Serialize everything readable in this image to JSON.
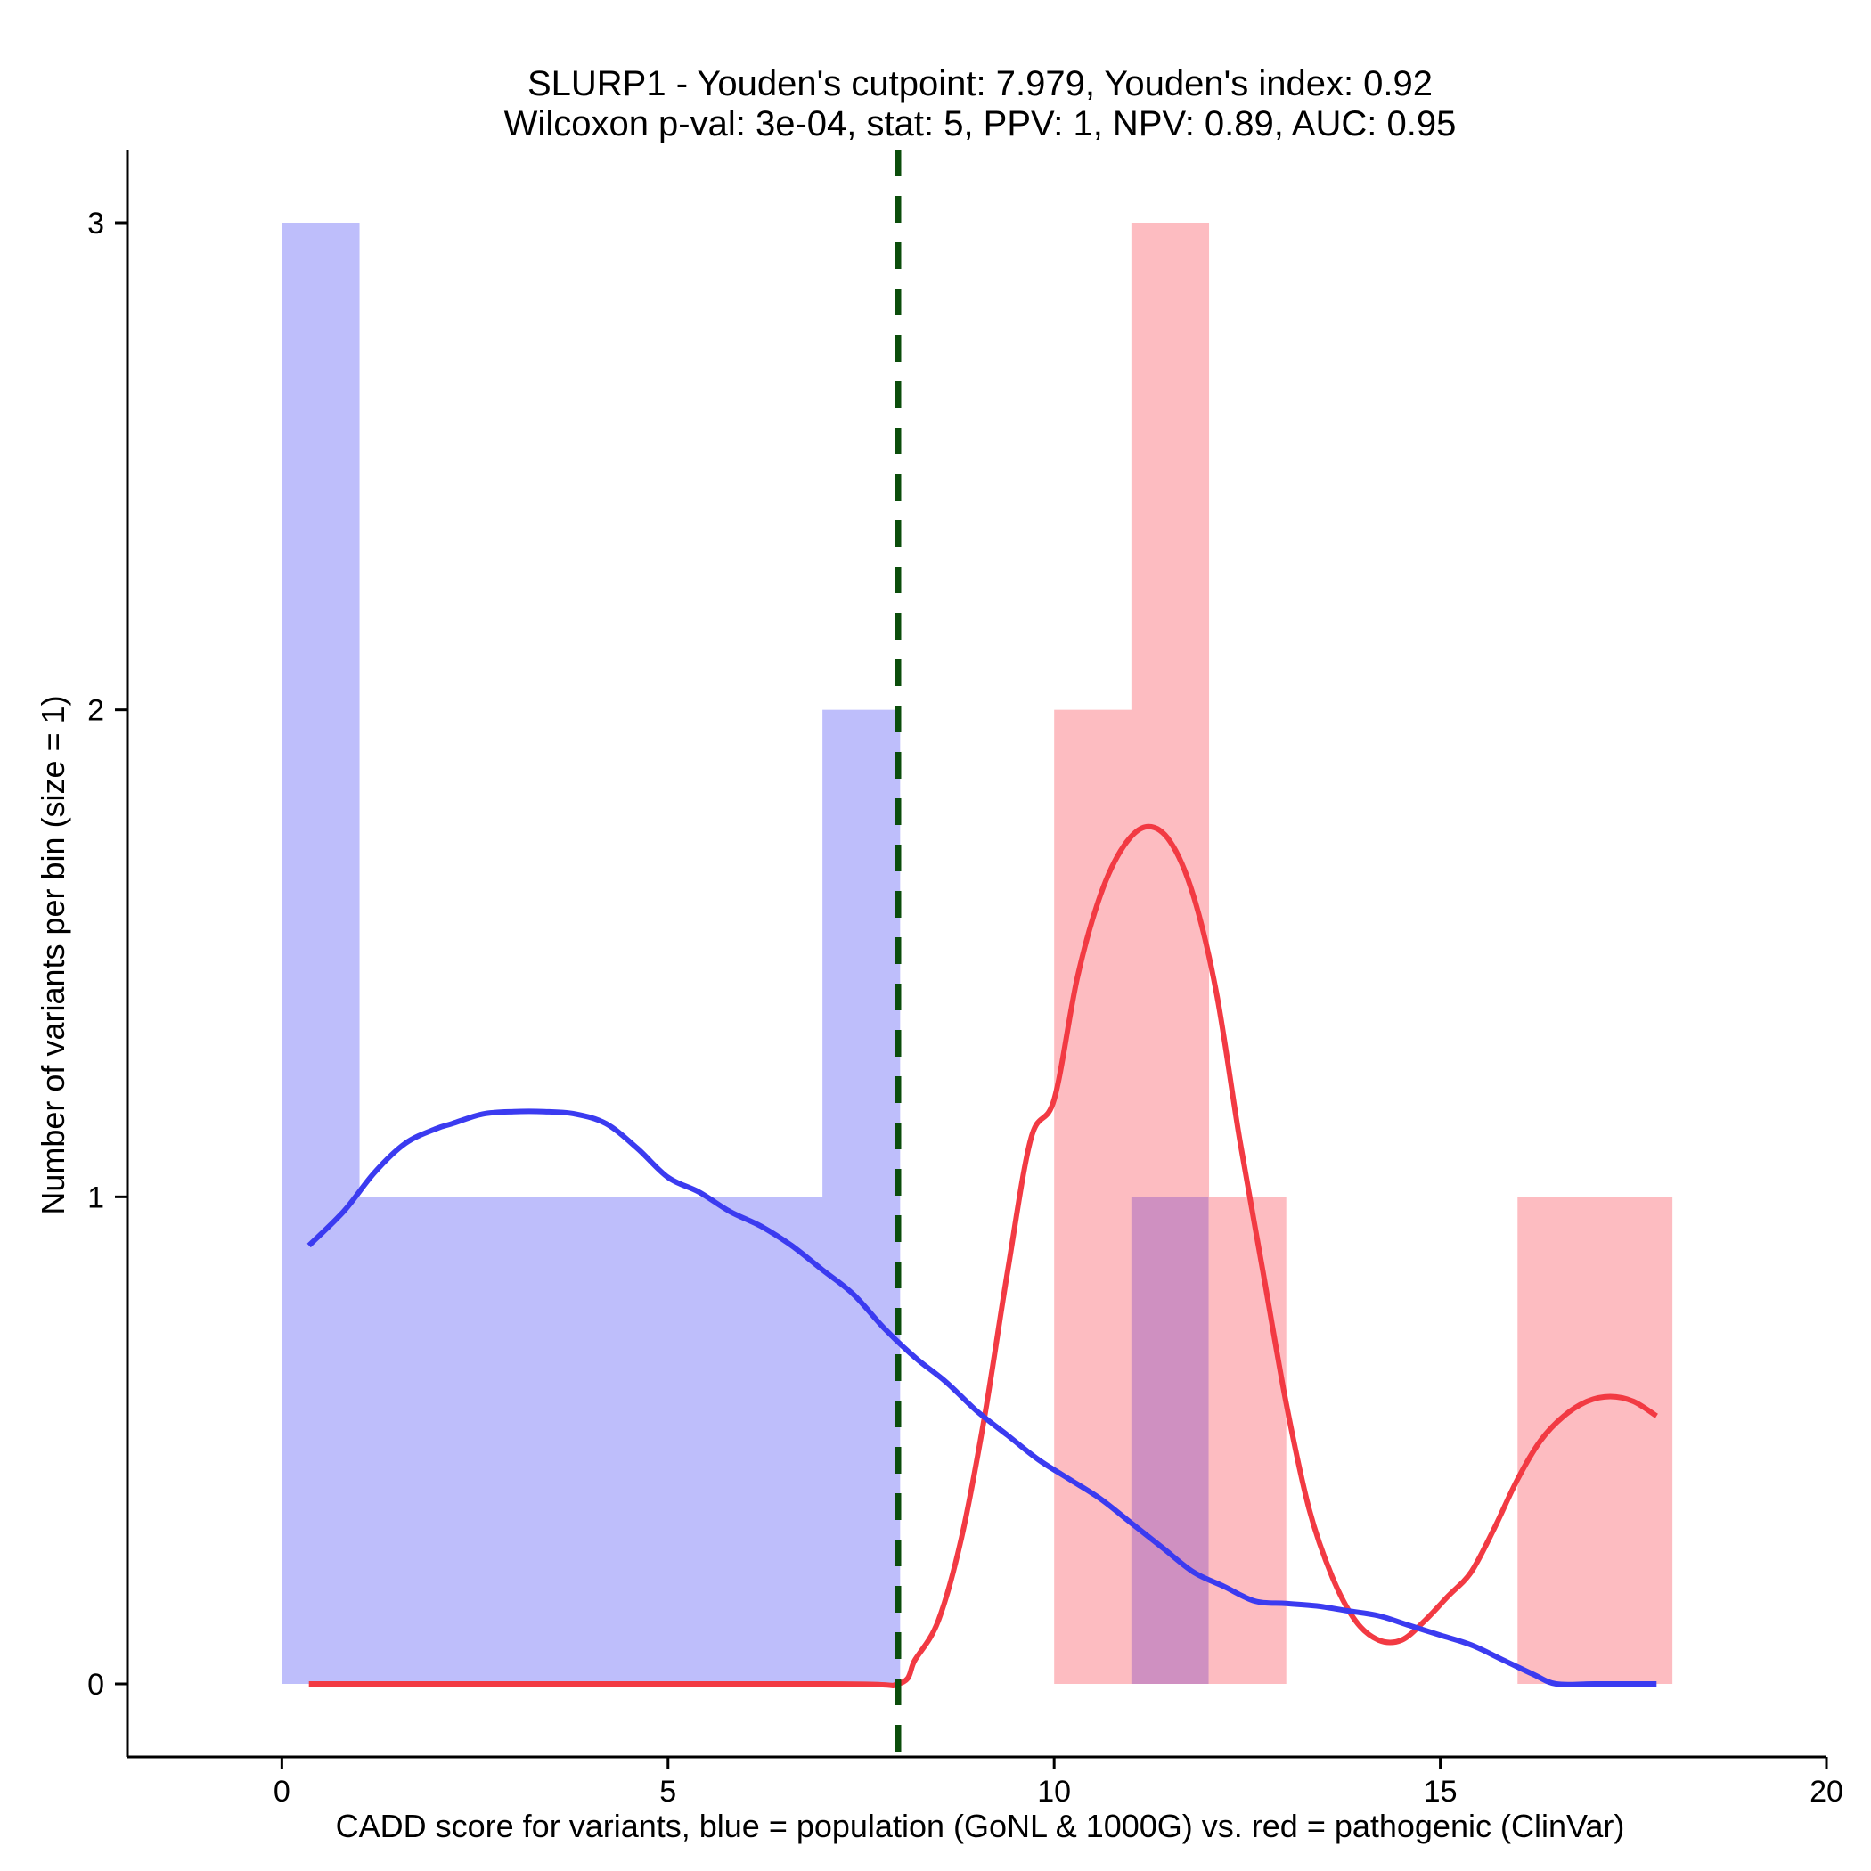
{
  "chart_data": {
    "type": "bar",
    "title_line1": "SLURP1 - Youden's cutpoint: 7.979, Youden's index: 0.92",
    "title_line2": "Wilcoxon p-val: 3e-04, stat: 5, PPV: 1, NPV: 0.89, AUC: 0.95",
    "xlabel": "CADD score for variants, blue = population (GoNL & 1000G) vs. red = pathogenic (ClinVar)",
    "ylabel": "Number of variants per bin (size = 1)",
    "xlim": [
      -2,
      20
    ],
    "ylim": [
      -0.15,
      3.15
    ],
    "xticks": [
      0,
      5,
      10,
      15,
      20
    ],
    "yticks": [
      0,
      1,
      2,
      3
    ],
    "cutpoint": 7.979,
    "colors": {
      "population_hist": "#bebefb",
      "pathogenic_hist": "#fdbcc1",
      "overlap_hist": "#cf90c1",
      "population_density": "#3b3bf0",
      "pathogenic_density": "#f23a43",
      "cutpoint_line": "#0b4d0b"
    },
    "series": [
      {
        "name": "population",
        "bins": [
          {
            "x0": 0,
            "x1": 1,
            "count": 3
          },
          {
            "x0": 1,
            "x1": 2,
            "count": 1
          },
          {
            "x0": 2,
            "x1": 3,
            "count": 1
          },
          {
            "x0": 3,
            "x1": 4,
            "count": 1
          },
          {
            "x0": 4,
            "x1": 5,
            "count": 1
          },
          {
            "x0": 5,
            "x1": 6,
            "count": 1
          },
          {
            "x0": 6,
            "x1": 7,
            "count": 1
          },
          {
            "x0": 7,
            "x1": 8,
            "count": 2
          },
          {
            "x0": 11,
            "x1": 12,
            "count": 1
          }
        ],
        "density": [
          [
            0.35,
            0.9
          ],
          [
            0.8,
            0.97
          ],
          [
            1.2,
            1.05
          ],
          [
            1.6,
            1.11
          ],
          [
            2.0,
            1.14
          ],
          [
            2.2,
            1.15
          ],
          [
            2.6,
            1.17
          ],
          [
            3.0,
            1.175
          ],
          [
            3.4,
            1.175
          ],
          [
            3.8,
            1.17
          ],
          [
            4.2,
            1.15
          ],
          [
            4.6,
            1.1
          ],
          [
            5.0,
            1.04
          ],
          [
            5.4,
            1.01
          ],
          [
            5.8,
            0.97
          ],
          [
            6.2,
            0.94
          ],
          [
            6.6,
            0.9
          ],
          [
            7.0,
            0.85
          ],
          [
            7.4,
            0.8
          ],
          [
            7.8,
            0.73
          ],
          [
            8.2,
            0.67
          ],
          [
            8.6,
            0.62
          ],
          [
            9.0,
            0.56
          ],
          [
            9.4,
            0.51
          ],
          [
            9.8,
            0.46
          ],
          [
            10.2,
            0.42
          ],
          [
            10.6,
            0.38
          ],
          [
            11.0,
            0.33
          ],
          [
            11.4,
            0.28
          ],
          [
            11.8,
            0.23
          ],
          [
            12.2,
            0.2
          ],
          [
            12.6,
            0.17
          ],
          [
            13.0,
            0.165
          ],
          [
            13.4,
            0.16
          ],
          [
            13.8,
            0.15
          ],
          [
            14.2,
            0.14
          ],
          [
            14.6,
            0.12
          ],
          [
            15.0,
            0.1
          ],
          [
            15.4,
            0.08
          ],
          [
            15.8,
            0.05
          ],
          [
            16.2,
            0.02
          ],
          [
            16.5,
            0.0
          ],
          [
            17.0,
            0.0
          ],
          [
            17.8,
            0.0
          ]
        ]
      },
      {
        "name": "pathogenic",
        "bins": [
          {
            "x0": 10,
            "x1": 11,
            "count": 2
          },
          {
            "x0": 11,
            "x1": 12,
            "count": 3
          },
          {
            "x0": 12,
            "x1": 13,
            "count": 1
          },
          {
            "x0": 16,
            "x1": 17,
            "count": 1
          },
          {
            "x0": 17,
            "x1": 18,
            "count": 1
          }
        ],
        "density": [
          [
            0.35,
            0.0
          ],
          [
            7.0,
            0.0
          ],
          [
            7.979,
            0.0
          ],
          [
            8.2,
            0.05
          ],
          [
            8.5,
            0.13
          ],
          [
            8.8,
            0.3
          ],
          [
            9.1,
            0.55
          ],
          [
            9.4,
            0.85
          ],
          [
            9.7,
            1.12
          ],
          [
            10.0,
            1.2
          ],
          [
            10.3,
            1.45
          ],
          [
            10.6,
            1.62
          ],
          [
            10.9,
            1.72
          ],
          [
            11.2,
            1.76
          ],
          [
            11.5,
            1.73
          ],
          [
            11.8,
            1.62
          ],
          [
            12.1,
            1.42
          ],
          [
            12.4,
            1.12
          ],
          [
            12.7,
            0.85
          ],
          [
            13.0,
            0.58
          ],
          [
            13.3,
            0.36
          ],
          [
            13.6,
            0.22
          ],
          [
            13.9,
            0.13
          ],
          [
            14.2,
            0.09
          ],
          [
            14.5,
            0.09
          ],
          [
            14.8,
            0.13
          ],
          [
            15.1,
            0.18
          ],
          [
            15.4,
            0.23
          ],
          [
            15.7,
            0.32
          ],
          [
            16.0,
            0.42
          ],
          [
            16.3,
            0.5
          ],
          [
            16.6,
            0.55
          ],
          [
            16.9,
            0.58
          ],
          [
            17.2,
            0.59
          ],
          [
            17.5,
            0.58
          ],
          [
            17.8,
            0.55
          ]
        ]
      }
    ]
  }
}
